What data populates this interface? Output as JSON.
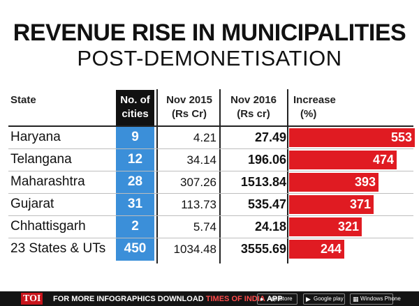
{
  "title": "REVENUE RISE IN MUNICIPALITIES",
  "subtitle": "POST-DEMONETISATION",
  "headers": {
    "state": "State",
    "cities_line1": "No. of",
    "cities_line2": "cities",
    "nov2015_line1": "Nov 2015",
    "nov2015_line2": "(Rs Cr)",
    "nov2016_line1": "Nov 2016",
    "nov2016_line2": "(Rs cr)",
    "increase_line1": "Increase",
    "increase_line2": "(%)"
  },
  "chart_data": {
    "type": "bar",
    "categories": [
      "Haryana",
      "Telangana",
      "Maharashtra",
      "Gujarat",
      "Chhattisgarh",
      "23 States & UTs"
    ],
    "cities": [
      "9",
      "12",
      "28",
      "31",
      "2",
      "450"
    ],
    "nov2015": [
      "4.21",
      "34.14",
      "307.26",
      "113.73",
      "5.74",
      "1034.48"
    ],
    "nov2016": [
      "27.49",
      "196.06",
      "1513.84",
      "535.47",
      "24.18",
      "3555.69"
    ],
    "values": [
      553,
      474,
      393,
      371,
      321,
      244
    ],
    "bar_color": "#e01b22",
    "cities_color": "#3b8fd9"
  },
  "footer": {
    "logo": "TOI",
    "text": "FOR MORE  INFOGRAPHICS DOWNLOAD ",
    "brand": "TIMES OF INDIA",
    "app": " APP",
    "app_store": "App Store",
    "google_play": "Google play",
    "windows": "Windows Phone"
  }
}
